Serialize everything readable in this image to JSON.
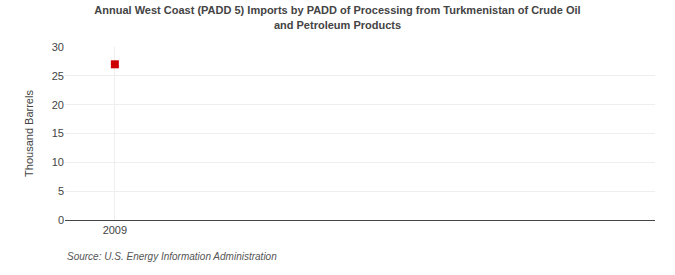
{
  "chart_data": {
    "type": "scatter",
    "title": "Annual West Coast (PADD 5) Imports by PADD of Processing from Turkmenistan of Crude Oil\nand Petroleum Products",
    "ylabel": "Thousand Barrels",
    "source": "Source: U.S. Energy Information Administration",
    "x": [
      2009
    ],
    "values": [
      27
    ],
    "color": "#cc0000",
    "marker": "square",
    "xlim": [
      2008.4,
      2015.5
    ],
    "ylim": [
      0,
      30
    ],
    "xticks": [
      2009
    ],
    "yticks": [
      0,
      5,
      10,
      15,
      20,
      25,
      30
    ],
    "grid": true
  }
}
